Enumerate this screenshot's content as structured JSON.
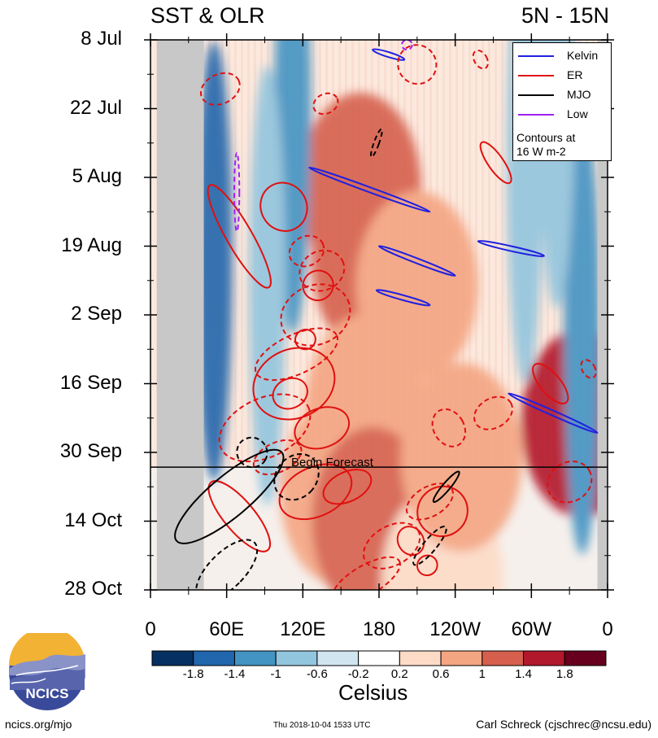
{
  "header": {
    "title_left": "SST & OLR",
    "title_right": "5N - 15N"
  },
  "legend": {
    "items": [
      {
        "label": "Kelvin",
        "color": "#2020e0"
      },
      {
        "label": "ER",
        "color": "#e01010"
      },
      {
        "label": "MJO",
        "color": "#000000"
      },
      {
        "label": "Low",
        "color": "#a020f0"
      }
    ],
    "note_line1": "Contours at",
    "note_line2": "16 W m-2"
  },
  "annotations": {
    "forecast_label": "Begin Forecast"
  },
  "colorbar": {
    "unit": "Celsius",
    "tick_labels": [
      "-1.8",
      "-1.4",
      "-1",
      "-0.6",
      "-0.2",
      "0.2",
      "0.6",
      "1",
      "1.4",
      "1.8"
    ],
    "colors": [
      "#053061",
      "#2166ac",
      "#4393c3",
      "#92c5de",
      "#d1e5f0",
      "#ffffff",
      "#fddbc7",
      "#f4a582",
      "#d6604d",
      "#b2182b",
      "#67001f"
    ]
  },
  "footer": {
    "left": "ncics.org/mjo",
    "center": "Thu 2018-10-04 1533 UTC",
    "right": "Carl Schreck (cjschrec@ncsu.edu)",
    "logo_text": "NCICS"
  },
  "chart_data": {
    "type": "heatmap",
    "title": "SST & OLR",
    "subtitle": "5N - 15N",
    "x_tick_labels": [
      "0",
      "60E",
      "120E",
      "180",
      "120W",
      "60W",
      "0"
    ],
    "y_tick_labels": [
      "8 Jul",
      "22 Jul",
      "5 Aug",
      "19 Aug",
      "2 Sep",
      "16 Sep",
      "30 Sep",
      "14 Oct",
      "28 Oct"
    ],
    "x_range_deg_east": [
      0,
      360
    ],
    "y_range": [
      "8 Jul",
      "28 Oct"
    ],
    "forecast_start": "3 Oct",
    "land_bands": [
      {
        "from_deg_east": 5,
        "to_deg_east": 42
      },
      {
        "from_deg_east": 352,
        "to_deg_east": 360
      }
    ],
    "sst_hotspots": [
      {
        "lon": 165,
        "day": 30,
        "value": 1.2
      },
      {
        "lon": 175,
        "day": 45,
        "value": 1.4
      },
      {
        "lon": 170,
        "day": 75,
        "value": 1.0
      },
      {
        "lon": 150,
        "day": 92,
        "value": 0.9
      },
      {
        "lon": 185,
        "day": 100,
        "value": 1.6
      },
      {
        "lon": 175,
        "day": 98,
        "value": 1.2
      },
      {
        "lon": 340,
        "day": 78,
        "value": 1.6
      },
      {
        "lon": 230,
        "day": 110,
        "value": 0.6
      },
      {
        "lon": 210,
        "day": 50,
        "value": 0.8
      },
      {
        "lon": 245,
        "day": 85,
        "value": 0.7
      }
    ],
    "sst_coldspots": [
      {
        "lon": 50,
        "day": 45,
        "value": -1.5
      },
      {
        "lon": 112,
        "day": 15,
        "value": -1.2
      },
      {
        "lon": 92,
        "day": 50,
        "value": -0.9
      },
      {
        "lon": 340,
        "day": 60,
        "value": -1.0
      },
      {
        "lon": 320,
        "day": 10,
        "value": -0.8
      },
      {
        "lon": 295,
        "day": 25,
        "value": -0.6
      }
    ],
    "kelvin_contours": [
      {
        "lon0": 125,
        "day0": 26,
        "lon1": 220,
        "day1": 35
      },
      {
        "lon0": 258,
        "day0": 41,
        "lon1": 310,
        "day1": 44
      },
      {
        "lon0": 180,
        "day0": 42,
        "lon1": 240,
        "day1": 48
      },
      {
        "lon0": 178,
        "day0": 51,
        "lon1": 220,
        "day1": 54
      },
      {
        "lon0": 282,
        "day0": 72,
        "lon1": 352,
        "day1": 80
      },
      {
        "lon0": 175,
        "day0": 2,
        "lon1": 200,
        "day1": 4
      }
    ],
    "er_solid": [
      {
        "lon": 105,
        "day": 34,
        "rx": 18,
        "rday": 5,
        "angle": -30
      },
      {
        "lon": 70,
        "day": 40,
        "rx": 10,
        "rday": 12,
        "angle": -30
      },
      {
        "lon": 132,
        "day": 50,
        "rx": 12,
        "rday": 3,
        "angle": -30
      },
      {
        "lon": 122,
        "day": 61,
        "rx": 8,
        "rday": 2,
        "angle": -20
      },
      {
        "lon": 113,
        "day": 70,
        "rx": 33,
        "rday": 7,
        "angle": -25
      },
      {
        "lon": 110,
        "day": 72,
        "rx": 14,
        "rday": 3,
        "angle": -25
      },
      {
        "lon": 135,
        "day": 79,
        "rx": 22,
        "rday": 4,
        "angle": -20
      },
      {
        "lon": 155,
        "day": 91,
        "rx": 20,
        "rday": 3,
        "angle": -25
      },
      {
        "lon": 130,
        "day": 92,
        "rx": 30,
        "rday": 5,
        "angle": -25
      },
      {
        "lon": 272,
        "day": 25,
        "rx": 6,
        "rday": 5,
        "angle": -35
      },
      {
        "lon": 315,
        "day": 70,
        "rx": 8,
        "rday": 5,
        "angle": -40
      },
      {
        "lon": 70,
        "day": 97,
        "rx": 12,
        "rday": 9,
        "angle": -40
      },
      {
        "lon": 230,
        "day": 96,
        "rx": 20,
        "rday": 5,
        "angle": -40
      },
      {
        "lon": 205,
        "day": 102,
        "rx": 10,
        "rday": 3,
        "angle": -30
      },
      {
        "lon": 168,
        "day": 114,
        "rx": 6,
        "rday": 2,
        "angle": -30
      },
      {
        "lon": 218,
        "day": 107,
        "rx": 8,
        "rday": 2,
        "angle": -40
      }
    ],
    "er_dashed": [
      {
        "lon": 55,
        "day": 10,
        "rx": 16,
        "rday": 3,
        "angle": -25
      },
      {
        "lon": 138,
        "day": 13,
        "rx": 10,
        "rday": 2,
        "angle": -25
      },
      {
        "lon": 123,
        "day": 43,
        "rx": 14,
        "rday": 3,
        "angle": -25
      },
      {
        "lon": 135,
        "day": 47,
        "rx": 18,
        "rday": 4,
        "angle": -25
      },
      {
        "lon": 130,
        "day": 56,
        "rx": 28,
        "rday": 6,
        "angle": -25
      },
      {
        "lon": 115,
        "day": 64,
        "rx": 35,
        "rday": 4,
        "angle": -25
      },
      {
        "lon": 90,
        "day": 79,
        "rx": 38,
        "rday": 6,
        "angle": -25
      },
      {
        "lon": 100,
        "day": 85,
        "rx": 20,
        "rday": 3,
        "angle": -25
      },
      {
        "lon": 210,
        "day": 5,
        "rx": 15,
        "rday": 4,
        "angle": -30
      },
      {
        "lon": 260,
        "day": 4,
        "rx": 5,
        "rday": 2,
        "angle": -30
      },
      {
        "lon": 235,
        "day": 79,
        "rx": 12,
        "rday": 4,
        "angle": -30
      },
      {
        "lon": 270,
        "day": 76,
        "rx": 16,
        "rday": 3,
        "angle": -30
      },
      {
        "lon": 220,
        "day": 94,
        "rx": 20,
        "rday": 3,
        "angle": -30
      },
      {
        "lon": 190,
        "day": 103,
        "rx": 24,
        "rday": 4,
        "angle": -30
      },
      {
        "lon": 170,
        "day": 110,
        "rx": 30,
        "rday": 3,
        "angle": -30
      },
      {
        "lon": 330,
        "day": 90,
        "rx": 18,
        "rday": 4,
        "angle": -30
      },
      {
        "lon": 345,
        "day": 67,
        "rx": 5,
        "rday": 2,
        "angle": -30
      }
    ],
    "mjo_solid": [
      {
        "lon": 62,
        "day": 93,
        "rx": 16,
        "rday": 14,
        "angle": 50
      },
      {
        "lon": 233,
        "day": 91,
        "rx": 3,
        "rday": 4,
        "angle": 40
      }
    ],
    "mjo_dashed": [
      {
        "lon": 60,
        "day": 108,
        "rx": 14,
        "rday": 8,
        "angle": 45
      },
      {
        "lon": 115,
        "day": 89,
        "rx": 16,
        "rday": 5,
        "angle": 40
      },
      {
        "lon": 80,
        "day": 84,
        "rx": 12,
        "rday": 3,
        "angle": 30
      },
      {
        "lon": 220,
        "day": 103,
        "rx": 5,
        "rday": 5,
        "angle": 40
      },
      {
        "lon": 178,
        "day": 21,
        "rx": 2,
        "rday": 3,
        "angle": 20
      }
    ],
    "low_contours": [
      {
        "lon": 68,
        "day": 31,
        "rx": 2,
        "rday": 8,
        "angle": 0
      },
      {
        "lon": 202,
        "day": 1,
        "rx": 4,
        "rday": 1,
        "angle": 0
      }
    ],
    "forecast_day": 87
  }
}
